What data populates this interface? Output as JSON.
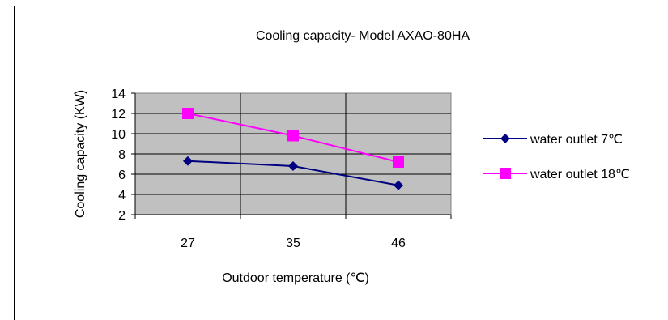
{
  "chart_data": {
    "type": "line",
    "title": "Cooling capacity- Model AXAO-80HA",
    "xlabel": "Outdoor temperature (℃)",
    "ylabel": "Cooling capacity (KW)",
    "categories": [
      "27",
      "35",
      "46"
    ],
    "ylim": [
      2,
      14
    ],
    "yticks": [
      2,
      4,
      6,
      8,
      10,
      12,
      14
    ],
    "grid": true,
    "legend_position": "right",
    "plot_background": "#c0c0c0",
    "series": [
      {
        "name": "water outlet 7℃",
        "values": [
          7.3,
          6.8,
          4.9
        ],
        "color": "#000080",
        "marker": "diamond"
      },
      {
        "name": "water outlet 18℃",
        "values": [
          12.0,
          9.8,
          7.2
        ],
        "color": "#ff00ff",
        "marker": "square"
      }
    ]
  }
}
